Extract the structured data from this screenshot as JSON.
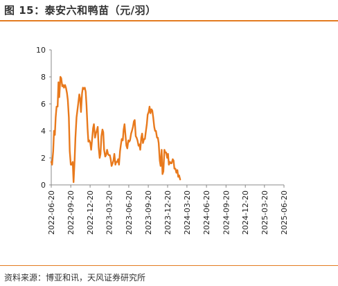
{
  "figure": {
    "title": "图 15：泰安六和鸭苗（元/羽）",
    "source": "资料来源：博亚和讯，天风证券研究所"
  },
  "colors": {
    "accent": "#e37b1f",
    "line": "#e8791c",
    "axis": "#888888",
    "text": "#222222"
  },
  "chart_data": {
    "type": "line",
    "title": "",
    "xlabel": "",
    "ylabel": "",
    "ylim": [
      0,
      10
    ],
    "yticks": [
      "0",
      "2",
      "4",
      "6",
      "8",
      "10"
    ],
    "xlim": [
      "2022-06-20",
      "2025-06-20"
    ],
    "xticks": [
      "2022-06-20",
      "2022-09-20",
      "2022-12-20",
      "2023-03-20",
      "2023-06-20",
      "2023-09-20",
      "2023-12-20",
      "2024-03-20",
      "2024-06-20",
      "2024-09-20",
      "2024-12-20",
      "2025-03-20",
      "2025-06-20"
    ],
    "grid": false,
    "legend": "none",
    "series": [
      {
        "name": "",
        "color": "#e8791c",
        "points": [
          [
            "2022-06-20",
            1.7
          ],
          [
            "2022-06-24",
            1.5
          ],
          [
            "2022-06-29",
            2.5
          ],
          [
            "2022-07-03",
            4.0
          ],
          [
            "2022-07-07",
            3.7
          ],
          [
            "2022-07-11",
            5.0
          ],
          [
            "2022-07-15",
            5.8
          ],
          [
            "2022-07-20",
            5.8
          ],
          [
            "2022-07-24",
            7.6
          ],
          [
            "2022-07-28",
            6.5
          ],
          [
            "2022-08-02",
            8.0
          ],
          [
            "2022-08-06",
            7.9
          ],
          [
            "2022-08-11",
            7.3
          ],
          [
            "2022-08-15",
            7.4
          ],
          [
            "2022-08-19",
            7.2
          ],
          [
            "2022-08-24",
            7.4
          ],
          [
            "2022-08-28",
            7.2
          ],
          [
            "2022-09-02",
            6.8
          ],
          [
            "2022-09-06",
            6.3
          ],
          [
            "2022-09-11",
            5.0
          ],
          [
            "2022-09-15",
            2.5
          ],
          [
            "2022-09-20",
            1.5
          ],
          [
            "2022-09-25",
            1.5
          ],
          [
            "2022-09-29",
            1.7
          ],
          [
            "2022-10-03",
            0.2
          ],
          [
            "2022-10-08",
            1.8
          ],
          [
            "2022-10-12",
            3.5
          ],
          [
            "2022-10-17",
            5.0
          ],
          [
            "2022-10-21",
            5.5
          ],
          [
            "2022-10-25",
            6.0
          ],
          [
            "2022-10-30",
            6.7
          ],
          [
            "2022-11-03",
            6.4
          ],
          [
            "2022-11-07",
            5.4
          ],
          [
            "2022-11-12",
            6.8
          ],
          [
            "2022-11-16",
            7.2
          ],
          [
            "2022-11-20",
            7.1
          ],
          [
            "2022-11-25",
            7.2
          ],
          [
            "2022-11-29",
            6.9
          ],
          [
            "2022-12-03",
            5.9
          ],
          [
            "2022-12-08",
            4.2
          ],
          [
            "2022-12-12",
            3.2
          ],
          [
            "2022-12-16",
            3.3
          ],
          [
            "2022-12-21",
            3.1
          ],
          [
            "2022-12-25",
            2.6
          ],
          [
            "2022-12-30",
            3.5
          ],
          [
            "2023-01-03",
            4.2
          ],
          [
            "2023-01-07",
            4.5
          ],
          [
            "2023-01-12",
            3.5
          ],
          [
            "2023-01-16",
            3.8
          ],
          [
            "2023-01-20",
            4.0
          ],
          [
            "2023-01-25",
            4.3
          ],
          [
            "2023-01-29",
            2.8
          ],
          [
            "2023-02-03",
            2.0
          ],
          [
            "2023-02-07",
            2.3
          ],
          [
            "2023-02-11",
            3.6
          ],
          [
            "2023-02-16",
            4.1
          ],
          [
            "2023-02-20",
            3.9
          ],
          [
            "2023-02-24",
            2.6
          ],
          [
            "2023-03-01",
            2.1
          ],
          [
            "2023-03-05",
            2.2
          ],
          [
            "2023-03-10",
            2.6
          ],
          [
            "2023-03-14",
            2.3
          ],
          [
            "2023-03-18",
            2.2
          ],
          [
            "2023-03-23",
            2.2
          ],
          [
            "2023-03-27",
            1.9
          ],
          [
            "2023-03-31",
            1.4
          ],
          [
            "2023-04-05",
            1.6
          ],
          [
            "2023-04-09",
            1.8
          ],
          [
            "2023-04-13",
            2.3
          ],
          [
            "2023-04-18",
            1.5
          ],
          [
            "2023-04-22",
            1.7
          ],
          [
            "2023-04-27",
            1.7
          ],
          [
            "2023-05-01",
            1.9
          ],
          [
            "2023-05-05",
            1.5
          ],
          [
            "2023-05-10",
            2.5
          ],
          [
            "2023-05-14",
            3.0
          ],
          [
            "2023-05-18",
            3.4
          ],
          [
            "2023-05-23",
            3.3
          ],
          [
            "2023-05-27",
            4.1
          ],
          [
            "2023-05-31",
            4.5
          ],
          [
            "2023-06-05",
            3.6
          ],
          [
            "2023-06-09",
            2.9
          ],
          [
            "2023-06-13",
            2.7
          ],
          [
            "2023-06-18",
            3.3
          ],
          [
            "2023-06-22",
            3.2
          ],
          [
            "2023-06-26",
            3.3
          ],
          [
            "2023-07-01",
            3.8
          ],
          [
            "2023-07-05",
            4.0
          ],
          [
            "2023-07-10",
            4.3
          ],
          [
            "2023-07-14",
            4.7
          ],
          [
            "2023-07-18",
            4.8
          ],
          [
            "2023-07-23",
            3.6
          ],
          [
            "2023-07-27",
            3.5
          ],
          [
            "2023-07-31",
            3.3
          ],
          [
            "2023-08-05",
            2.9
          ],
          [
            "2023-08-09",
            3.0
          ],
          [
            "2023-08-13",
            2.6
          ],
          [
            "2023-08-18",
            3.5
          ],
          [
            "2023-08-22",
            3.8
          ],
          [
            "2023-08-26",
            3.1
          ],
          [
            "2023-08-31",
            3.4
          ],
          [
            "2023-09-04",
            3.4
          ],
          [
            "2023-09-09",
            4.0
          ],
          [
            "2023-09-13",
            4.5
          ],
          [
            "2023-09-17",
            5.2
          ],
          [
            "2023-09-22",
            5.4
          ],
          [
            "2023-09-26",
            5.8
          ],
          [
            "2023-09-30",
            5.3
          ],
          [
            "2023-10-05",
            5.6
          ],
          [
            "2023-10-09",
            5.5
          ],
          [
            "2023-10-13",
            5.0
          ],
          [
            "2023-10-18",
            4.3
          ],
          [
            "2023-10-22",
            4.0
          ],
          [
            "2023-10-26",
            4.0
          ],
          [
            "2023-10-31",
            3.5
          ],
          [
            "2023-11-04",
            3.5
          ],
          [
            "2023-11-08",
            3.1
          ],
          [
            "2023-11-13",
            1.8
          ],
          [
            "2023-11-17",
            1.4
          ],
          [
            "2023-11-22",
            2.6
          ],
          [
            "2023-11-26",
            0.8
          ],
          [
            "2023-11-30",
            1.0
          ],
          [
            "2023-12-05",
            2.6
          ],
          [
            "2023-12-09",
            2.4
          ],
          [
            "2023-12-13",
            2.4
          ],
          [
            "2023-12-18",
            2.0
          ],
          [
            "2023-12-22",
            2.3
          ],
          [
            "2023-12-26",
            1.5
          ],
          [
            "2023-12-31",
            1.7
          ],
          [
            "2024-01-04",
            1.6
          ],
          [
            "2024-01-08",
            1.6
          ],
          [
            "2024-01-13",
            1.9
          ],
          [
            "2024-01-17",
            1.8
          ],
          [
            "2024-01-21",
            1.2
          ],
          [
            "2024-01-26",
            1.2
          ],
          [
            "2024-01-30",
            0.9
          ],
          [
            "2024-02-04",
            1.1
          ],
          [
            "2024-02-08",
            0.6
          ],
          [
            "2024-02-12",
            0.7
          ],
          [
            "2024-02-17",
            0.4
          ]
        ]
      }
    ]
  }
}
